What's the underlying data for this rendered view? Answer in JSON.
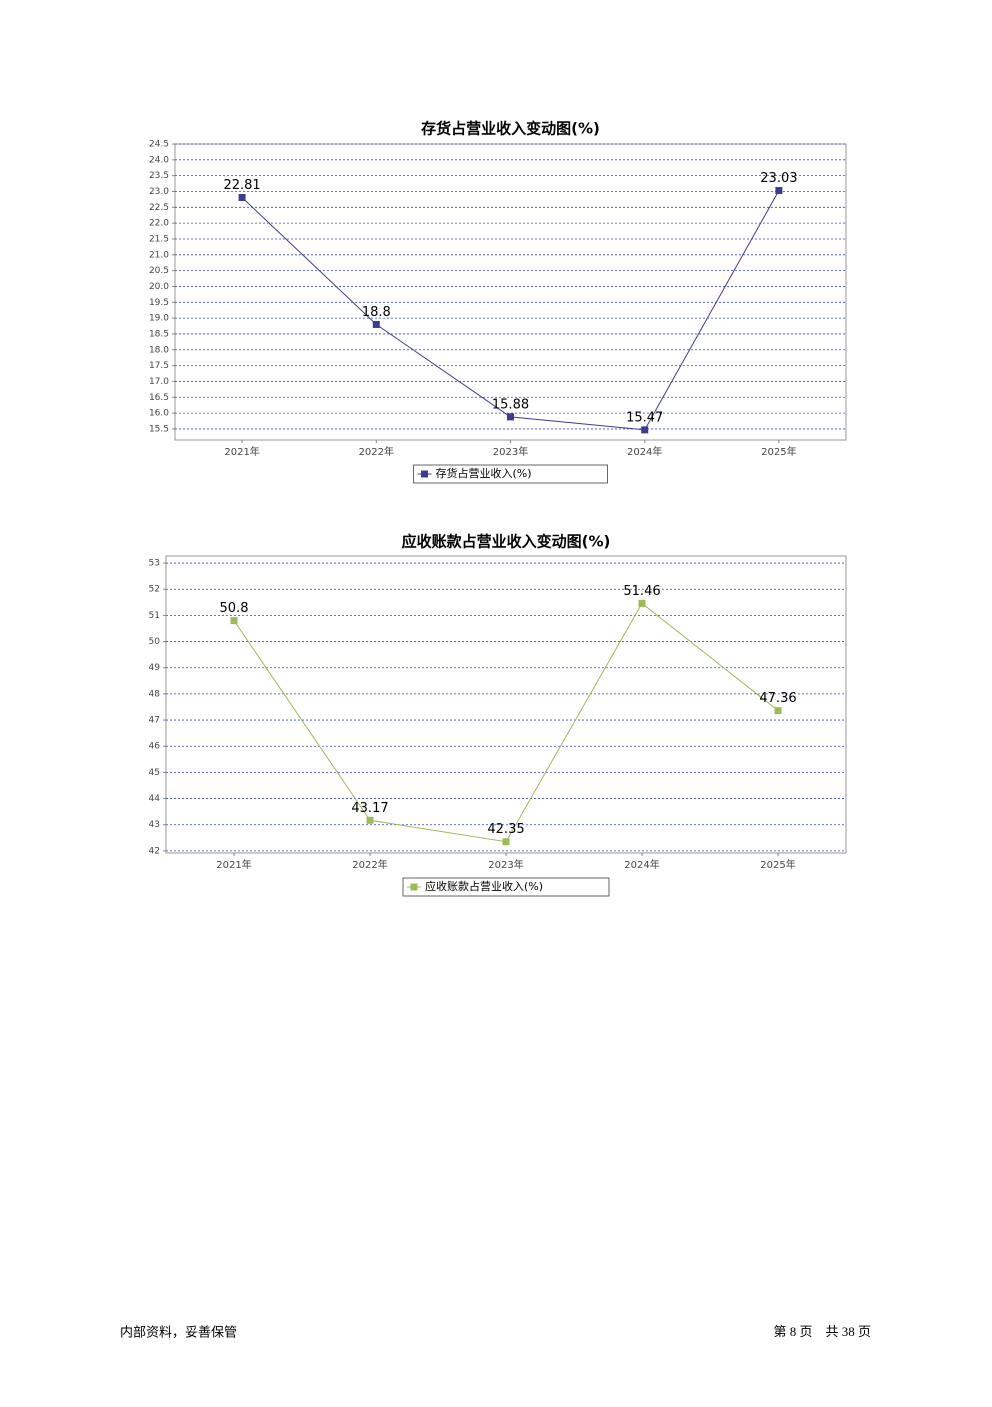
{
  "chart_data": [
    {
      "type": "line",
      "title": "存货占营业收入变动图(%)",
      "categories": [
        "2021年",
        "2022年",
        "2023年",
        "2024年",
        "2025年"
      ],
      "series": [
        {
          "name": "存货占营业收入(%)",
          "color": "#3d3d8f",
          "values": [
            22.81,
            18.8,
            15.88,
            15.47,
            23.03
          ]
        }
      ],
      "ylim": [
        15.15,
        24.5
      ],
      "yticks": [
        15.5,
        {
          "value": 16,
          "label": "16.0"
        },
        16.5,
        {
          "value": 17,
          "label": "17.0"
        },
        17.5,
        {
          "value": 18,
          "label": "18.0"
        },
        18.5,
        {
          "value": 19,
          "label": "19.0"
        },
        19.5,
        {
          "value": 20,
          "label": "20.0"
        },
        20.5,
        {
          "value": 21,
          "label": "21.0"
        },
        21.5,
        {
          "value": 22,
          "label": "22.0"
        },
        22.5,
        {
          "value": 23,
          "label": "23.0"
        },
        23.5,
        {
          "value": 24,
          "label": "24.0"
        },
        24.5
      ],
      "grid": true
    },
    {
      "type": "line",
      "title": "应收账款占营业收入变动图(%)",
      "categories": [
        "2021年",
        "2022年",
        "2023年",
        "2024年",
        "2025年"
      ],
      "series": [
        {
          "name": "应收账款占营业收入(%)",
          "color": "#9bbb59",
          "values": [
            50.8,
            43.17,
            42.35,
            51.46,
            47.36
          ]
        }
      ],
      "ylim": [
        41.92,
        53.27
      ],
      "yticks": [
        42,
        43,
        44,
        45,
        46,
        47,
        48,
        49,
        50,
        51,
        52,
        53
      ],
      "grid": true
    }
  ],
  "footer": {
    "left": "内部资料，妥善保管",
    "right": "第 8 页　共 38 页"
  }
}
